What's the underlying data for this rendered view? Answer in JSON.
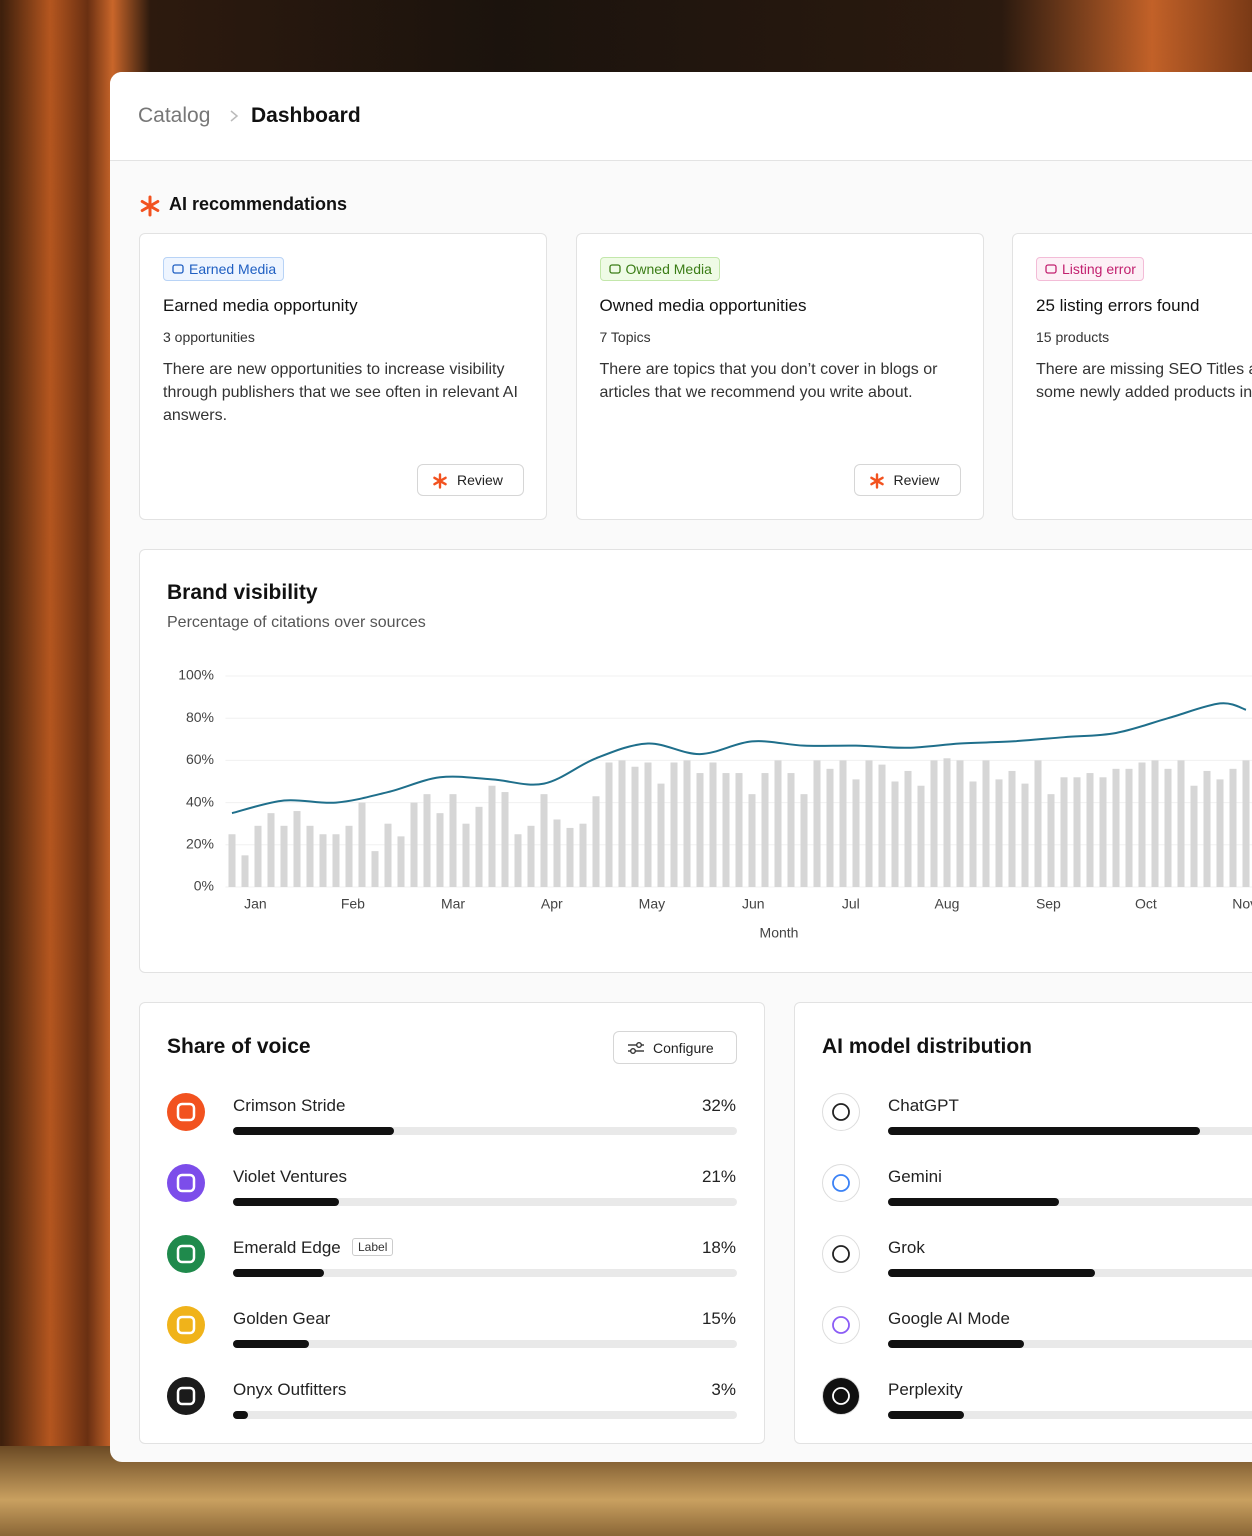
{
  "breadcrumb": {
    "parent": "Catalog",
    "current": "Dashboard"
  },
  "recommendations": {
    "title": "AI recommendations",
    "cards": [
      {
        "tag": "Earned Media",
        "title": "Earned media opportunity",
        "count": "3 opportunities",
        "description": "There are new opportunities to increase visibility through publishers that we see often in relevant AI answers.",
        "action": "Review"
      },
      {
        "tag": "Owned Media",
        "title": "Owned media opportunities",
        "count": "7 Topics",
        "description": "There are topics that you don’t cover in blogs or articles that we recommend you write about.",
        "action": "Review"
      },
      {
        "tag": "Listing error",
        "title": "25 listing errors found",
        "count": "15 products",
        "description": "There are missing SEO Titles and Descriptions for some newly added products in your catalog."
      }
    ]
  },
  "chart_data": {
    "type": "combo",
    "title": "Brand visibility",
    "subtitle": "Percentage of citations over sources",
    "xlabel": "Month",
    "xlim": [
      -0.5,
      80
    ],
    "xticks": [
      {
        "value": 1.8,
        "label": "Jan"
      },
      {
        "value": 9.3,
        "label": "Feb"
      },
      {
        "value": 17,
        "label": "Mar"
      },
      {
        "value": 24.6,
        "label": "Apr"
      },
      {
        "value": 32.3,
        "label": "May"
      },
      {
        "value": 40.1,
        "label": "Jun"
      },
      {
        "value": 47.6,
        "label": "Jul"
      },
      {
        "value": 55,
        "label": "Aug"
      },
      {
        "value": 62.8,
        "label": "Sep"
      },
      {
        "value": 70.3,
        "label": "Oct"
      },
      {
        "value": 77.9,
        "label": "Nov"
      }
    ],
    "ylim": [
      0,
      100
    ],
    "yticks": [
      {
        "value": 0,
        "label": "0%"
      },
      {
        "value": 20,
        "label": "20%"
      },
      {
        "value": 40,
        "label": "40%"
      },
      {
        "value": 60,
        "label": "60%"
      },
      {
        "value": 80,
        "label": "80%"
      },
      {
        "value": 100,
        "label": "100%"
      }
    ],
    "grid": true,
    "series": [
      {
        "type": "bar",
        "color": "#d6d6d6",
        "x": [
          0,
          1,
          2,
          3,
          4,
          5,
          6,
          7,
          8,
          9,
          10,
          11,
          12,
          13,
          14,
          15,
          16,
          17,
          18,
          19,
          20,
          21,
          22,
          23,
          24,
          25,
          26,
          27,
          28,
          29,
          30,
          31,
          32,
          33,
          34,
          35,
          36,
          37,
          38,
          39,
          40,
          41,
          42,
          43,
          44,
          45,
          46,
          47,
          48,
          49,
          50,
          51,
          52,
          53,
          54,
          55,
          56,
          57,
          58,
          59,
          60,
          61,
          62,
          63,
          64,
          65,
          66,
          67,
          68,
          69,
          70,
          71,
          72,
          73,
          74,
          75,
          76,
          77,
          78
        ],
        "values": [
          25,
          15,
          29,
          35,
          29,
          36,
          29,
          25,
          25,
          29,
          40,
          17,
          30,
          24,
          40,
          44,
          35,
          44,
          30,
          38,
          48,
          45,
          25,
          29,
          44,
          32,
          28,
          30,
          43,
          59,
          60,
          57,
          59,
          49,
          59,
          60,
          54,
          59,
          54,
          54,
          44,
          54,
          60,
          54,
          44,
          60,
          56,
          60,
          51,
          60,
          58,
          50,
          55,
          48,
          60,
          61,
          60,
          50,
          60,
          51,
          55,
          49,
          60,
          44,
          52,
          52,
          54,
          52,
          56,
          56,
          59,
          60,
          56,
          60,
          48,
          55,
          51,
          56,
          60
        ]
      },
      {
        "type": "line",
        "color": "#1f6f8b",
        "x": [
          0,
          4,
          8,
          12,
          16,
          20,
          24,
          28,
          32,
          36,
          40,
          44,
          48,
          52,
          56,
          60,
          64,
          68,
          72,
          76,
          78
        ],
        "values": [
          35,
          41,
          40,
          45,
          52,
          51,
          49,
          61,
          68,
          63,
          69,
          67,
          67,
          66,
          68,
          69,
          71,
          73,
          80,
          87,
          84
        ]
      }
    ]
  },
  "share_of_voice": {
    "title": "Share of voice",
    "action": "Configure",
    "items": [
      {
        "name": "Crimson Stride",
        "value": 32,
        "value_label": "32%"
      },
      {
        "name": "Violet Ventures",
        "value": 21,
        "value_label": "21%"
      },
      {
        "name": "Emerald Edge",
        "badge": "Label",
        "value": 18,
        "value_label": "18%"
      },
      {
        "name": "Golden Gear",
        "value": 15,
        "value_label": "15%"
      },
      {
        "name": "Onyx Outfitters",
        "value": 3,
        "value_label": "3%"
      }
    ]
  },
  "ai_models": {
    "title": "AI model distribution",
    "items": [
      {
        "name": "ChatGPT",
        "value": 62
      },
      {
        "name": "Gemini",
        "value": 34
      },
      {
        "name": "Grok",
        "value": 41
      },
      {
        "name": "Google AI Mode",
        "value": 27
      },
      {
        "name": "Perplexity",
        "value": 15
      }
    ]
  }
}
